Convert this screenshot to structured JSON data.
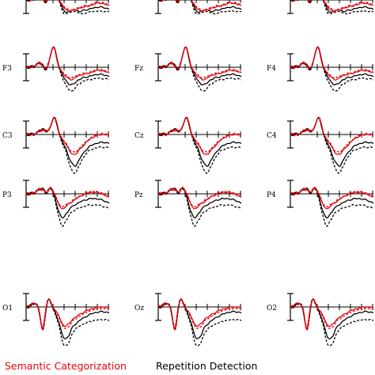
{
  "chart_data": {
    "type": "line",
    "panels": [
      {
        "row": 0,
        "col": 0,
        "label": "",
        "shape": "top"
      },
      {
        "row": 0,
        "col": 1,
        "label": "",
        "shape": "top"
      },
      {
        "row": 0,
        "col": 2,
        "label": "",
        "shape": "top"
      },
      {
        "row": 1,
        "col": 0,
        "label": "F3",
        "shape": "frontal"
      },
      {
        "row": 1,
        "col": 1,
        "label": "Fz",
        "shape": "frontal"
      },
      {
        "row": 1,
        "col": 2,
        "label": "F4",
        "shape": "frontal"
      },
      {
        "row": 2,
        "col": 0,
        "label": "C3",
        "shape": "central"
      },
      {
        "row": 2,
        "col": 1,
        "label": "Cz",
        "shape": "central"
      },
      {
        "row": 2,
        "col": 2,
        "label": "C4",
        "shape": "central"
      },
      {
        "row": 3,
        "col": 0,
        "label": "P3",
        "shape": "parietal"
      },
      {
        "row": 3,
        "col": 1,
        "label": "Pz",
        "shape": "parietal"
      },
      {
        "row": 3,
        "col": 2,
        "label": "P4",
        "shape": "parietal"
      },
      {
        "row": 4,
        "col": 0,
        "label": "O1",
        "shape": "occipital"
      },
      {
        "row": 4,
        "col": 1,
        "label": "Oz",
        "shape": "occipital"
      },
      {
        "row": 4,
        "col": 2,
        "label": "O2",
        "shape": "occipital"
      }
    ],
    "series": [
      {
        "name": "Semantic Categorization",
        "color": "#e8000b",
        "styles": [
          "solid",
          "dashed"
        ]
      },
      {
        "name": "Repetition Detection",
        "color": "#000000",
        "styles": [
          "solid",
          "dashed"
        ]
      }
    ],
    "x_ticks": 6,
    "legend_position": "bottom"
  },
  "legend": {
    "semantic": "Semantic Categorization",
    "repetition": "Repetition Detection"
  },
  "colors": {
    "semantic": "#e8000b",
    "repetition": "#000000"
  }
}
